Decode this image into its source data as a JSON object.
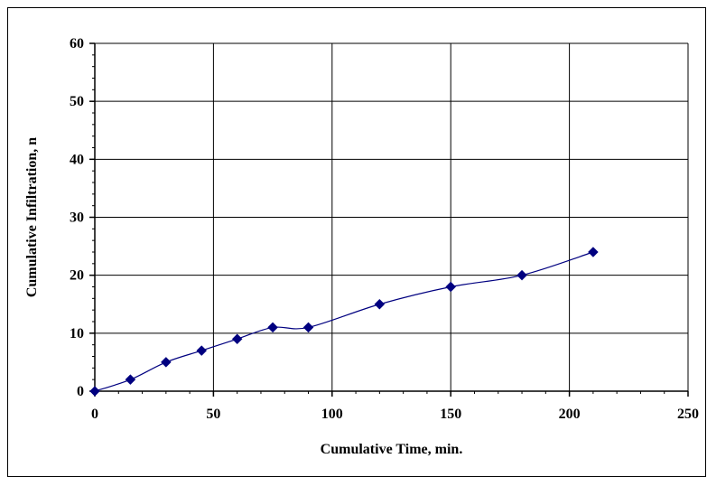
{
  "chart_data": {
    "type": "line",
    "title": "",
    "xlabel": "Cumulative Time, min.",
    "ylabel": "Cumulative Infiltration, n",
    "xlim": [
      0,
      250
    ],
    "ylim": [
      0,
      60
    ],
    "x_ticks": [
      0,
      50,
      100,
      150,
      200,
      250
    ],
    "y_ticks": [
      0,
      10,
      20,
      30,
      40,
      50,
      60
    ],
    "grid": true,
    "legend": "none",
    "series": [
      {
        "color": "#000080",
        "marker": "diamond",
        "smooth": true,
        "x": [
          0,
          15,
          30,
          45,
          60,
          75,
          90,
          120,
          150,
          180,
          210
        ],
        "y": [
          0,
          2,
          5,
          7,
          9,
          11,
          11,
          15,
          18,
          20,
          24
        ]
      }
    ]
  }
}
